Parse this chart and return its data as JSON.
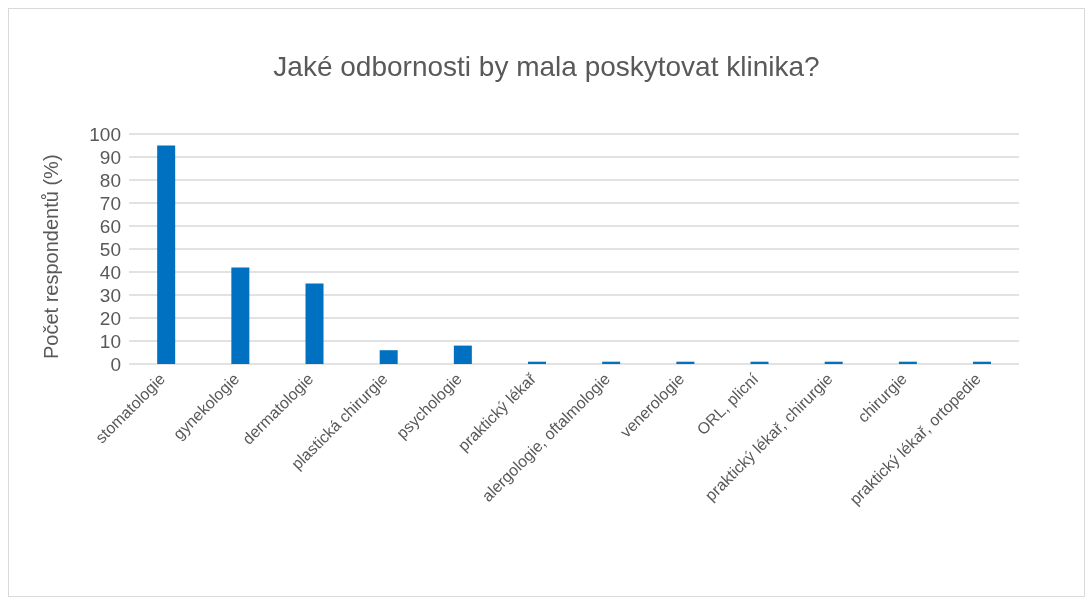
{
  "chart_data": {
    "type": "bar",
    "title": "Jaké odbornosti by mala poskytovat klinika?",
    "ylabel": "Počet respondentů (%)",
    "categories": [
      "stomatologie",
      "gynekologie",
      "dermatologie",
      "plastická chirurgie",
      "psychologie",
      "praktický lékař",
      "alergologie, oftalmologie",
      "venerologie",
      "ORL, plicní",
      "praktický lékař, chirurgie",
      "chirurgie",
      "praktický lékař, ortopedie"
    ],
    "values": [
      95,
      42,
      35,
      6,
      8,
      1,
      1,
      1,
      1,
      1,
      1,
      1
    ],
    "color": "#0070c0",
    "ylim": [
      0,
      100
    ],
    "yticks": [
      0,
      10,
      20,
      30,
      40,
      50,
      60,
      70,
      80,
      90,
      100
    ],
    "grid": "y"
  }
}
